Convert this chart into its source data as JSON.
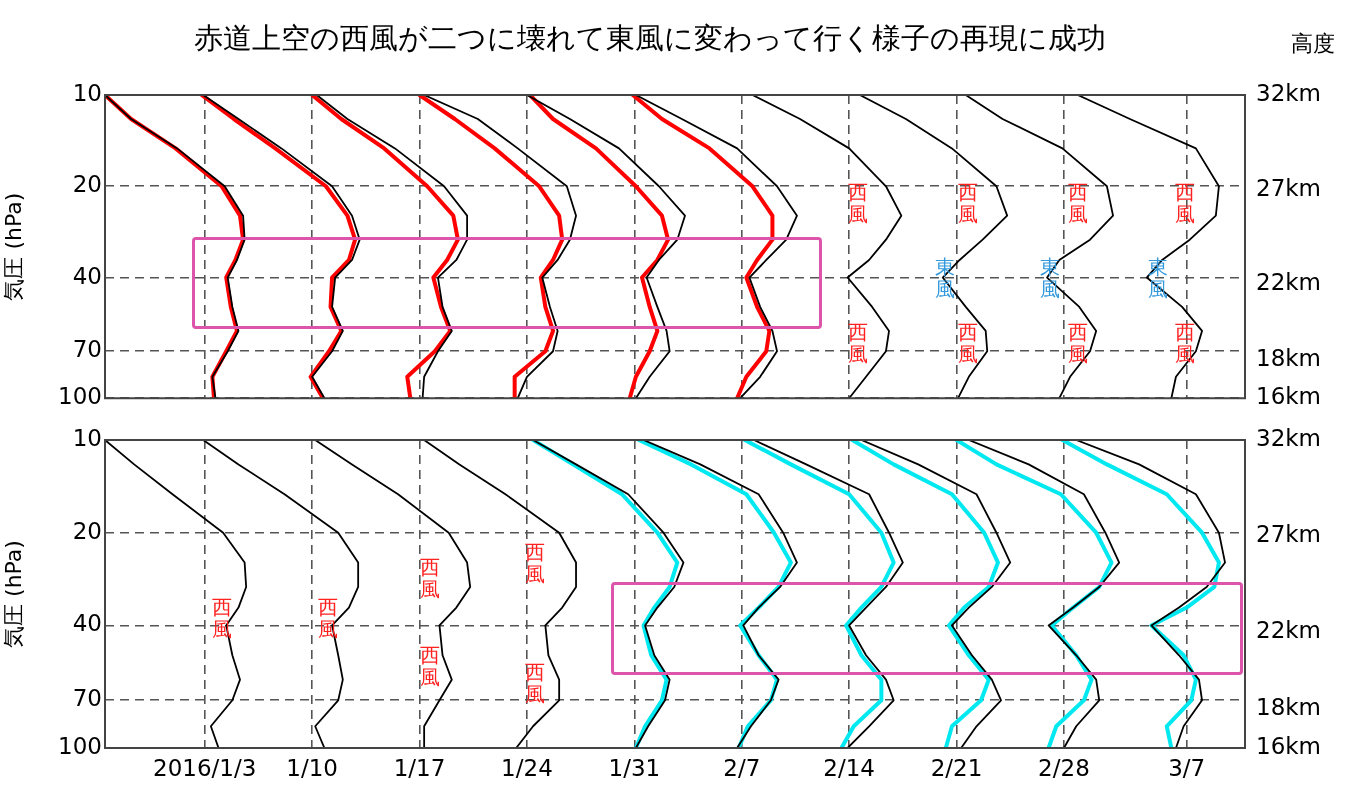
{
  "chart_data": [
    {
      "type": "line",
      "title": "赤道上空の西風が二つに壊れて東風に変わって行く様子の再現に成功",
      "ylabel": "気圧 (hPa)",
      "y2label": "高度",
      "xlim": [
        "2015-12-27T12:00",
        "2016-03-10T19:12"
      ],
      "xticks": [
        {
          "value": "2016-01-03",
          "label": null
        },
        {
          "value": "2016-01-10",
          "label": null
        },
        {
          "value": "2016-01-17",
          "label": null
        },
        {
          "value": "2016-01-24",
          "label": null
        },
        {
          "value": "2016-01-31",
          "label": null
        },
        {
          "value": "2016-02-07",
          "label": null
        },
        {
          "value": "2016-02-14",
          "label": null
        },
        {
          "value": "2016-02-21",
          "label": null
        },
        {
          "value": "2016-02-28",
          "label": null
        },
        {
          "value": "2016-03-07",
          "label": null
        }
      ],
      "ylim": [
        100,
        10
      ],
      "yticks": [
        10,
        20,
        40,
        70,
        100
      ],
      "y2lim": [
        16,
        32
      ],
      "y2ticks": [
        {
          "value": 16,
          "label": "16km"
        },
        {
          "value": 18,
          "label": "18km"
        },
        {
          "value": 22,
          "label": "22km"
        },
        {
          "value": 27,
          "label": "27km"
        },
        {
          "value": 32,
          "label": "32km"
        }
      ],
      "log": "y",
      "grid": true,
      "tick_labels": "y",
      "annotations": [
        "西風",
        "西風",
        "西風",
        "西風",
        "西風",
        "西風",
        "西風",
        "西風",
        "東風",
        "東風",
        "東風"
      ],
      "series": [
        {
          "color": "#ff0000",
          "x": [
            "2015-12-27T12:00",
            "2015-12-29T04:48",
            "2016-01-01T02:24",
            "2016-01-04T02:24",
            "2016-01-05T07:12",
            "2016-01-05T12:00",
            "2016-01-05T00:00",
            "2016-01-04T09:36",
            "2016-01-04T16:48",
            "2016-01-05T02:24",
            "2016-01-04T09:36",
            "2016-01-03T12:00",
            "2016-01-03T14:24"
          ],
          "values": [
            10,
            12,
            15,
            20,
            25,
            30,
            35,
            40,
            50,
            60,
            70,
            85,
            100
          ]
        },
        {
          "color": "#ff0000",
          "x": [
            "2016-01-02T19:12",
            "2016-01-04T21:36",
            "2016-01-07T14:24",
            "2016-01-10T21:36",
            "2016-01-12T07:12",
            "2016-01-12T19:12",
            "2016-01-12T09:36",
            "2016-01-11T07:12",
            "2016-01-11T04:48",
            "2016-01-11T21:36",
            "2016-01-11T02:24",
            "2016-01-09T21:36",
            "2016-01-10T16:48"
          ],
          "values": [
            10,
            12,
            15,
            20,
            25,
            30,
            35,
            40,
            50,
            60,
            70,
            85,
            100
          ]
        },
        {
          "color": "#ff0000",
          "x": [
            "2016-01-10T00:00",
            "2016-01-11T21:36",
            "2016-01-14T16:48",
            "2016-01-17T12:00",
            "2016-01-19T04:48",
            "2016-01-19T12:00",
            "2016-01-18T19:12",
            "2016-01-17T21:36",
            "2016-01-18T09:36",
            "2016-01-19T00:00",
            "2016-01-18T00:00",
            "2016-01-16T04:48",
            "2016-01-16T09:36"
          ],
          "values": [
            10,
            12,
            15,
            20,
            25,
            30,
            35,
            40,
            50,
            60,
            70,
            85,
            100
          ]
        },
        {
          "color": "#ff0000",
          "x": [
            "2016-01-17T00:00",
            "2016-01-19T07:12",
            "2016-01-21T21:36",
            "2016-01-24T19:12",
            "2016-01-26T02:24",
            "2016-01-26T07:12",
            "2016-01-25T16:48",
            "2016-01-24T21:36",
            "2016-01-25T04:48",
            "2016-01-25T16:48",
            "2016-01-25T04:48",
            "2016-01-23T04:48",
            "2016-01-23T04:48"
          ],
          "values": [
            10,
            12,
            15,
            20,
            25,
            30,
            35,
            40,
            50,
            60,
            70,
            85,
            100
          ]
        },
        {
          "color": "#ff0000",
          "x": [
            "2016-01-24T04:48",
            "2016-01-25T16:48",
            "2016-01-28T12:00",
            "2016-01-31T02:24",
            "2016-02-01T19:12",
            "2016-02-02T04:48",
            "2016-02-01T12:00",
            "2016-01-31T12:00",
            "2016-02-01T00:00",
            "2016-02-01T12:00",
            "2016-02-01T00:00",
            "2016-01-31T02:24",
            "2016-01-30T16:48"
          ],
          "values": [
            10,
            12,
            15,
            20,
            25,
            30,
            35,
            40,
            50,
            60,
            70,
            85,
            100
          ]
        },
        {
          "color": "#ff0000",
          "x": [
            "2016-01-30T21:36",
            "2016-02-01T19:12",
            "2016-02-04T21:36",
            "2016-02-07T16:48",
            "2016-02-09T00:00",
            "2016-02-09T00:00",
            "2016-02-08T00:00",
            "2016-02-07T07:12",
            "2016-02-08T00:00",
            "2016-02-08T19:12",
            "2016-02-08T14:24",
            "2016-02-07T07:12",
            "2016-02-06T16:48"
          ],
          "values": [
            10,
            12,
            15,
            20,
            25,
            30,
            35,
            40,
            50,
            60,
            70,
            85,
            100
          ]
        },
        {
          "color": "#000000",
          "x": [
            "2015-12-27T12:00",
            "2015-12-29T04:48",
            "2016-01-01T04:48",
            "2016-01-04T07:12",
            "2016-01-05T12:00",
            "2016-01-05T14:24",
            "2016-01-05T02:24",
            "2016-01-04T12:00",
            "2016-01-04T19:12",
            "2016-01-05T04:48",
            "2016-01-04T12:00",
            "2016-01-03T12:00",
            "2016-01-03T16:48"
          ],
          "values": [
            10,
            12,
            15,
            20,
            25,
            30,
            35,
            40,
            50,
            60,
            70,
            85,
            100
          ]
        },
        {
          "color": "#000000",
          "x": [
            "2016-01-02T21:36",
            "2016-01-05T04:48",
            "2016-01-08T00:00",
            "2016-01-11T07:12",
            "2016-01-12T14:24",
            "2016-01-13T02:24",
            "2016-01-12T14:24",
            "2016-01-11T12:00",
            "2016-01-11T07:12",
            "2016-01-12T00:00",
            "2016-01-11T07:12",
            "2016-01-10T00:00",
            "2016-01-10T19:12"
          ],
          "values": [
            10,
            12,
            15,
            20,
            25,
            30,
            35,
            40,
            50,
            60,
            70,
            85,
            100
          ]
        },
        {
          "color": "#000000",
          "x": [
            "2016-01-10T07:12",
            "2016-01-12T07:12",
            "2016-01-15T09:36",
            "2016-01-18T14:24",
            "2016-01-20T02:24",
            "2016-01-20T02:24",
            "2016-01-19T09:36",
            "2016-01-18T04:48",
            "2016-01-18T12:00",
            "2016-01-19T02:24",
            "2016-01-18T04:48",
            "2016-01-17T07:12",
            "2016-01-17T04:48"
          ],
          "values": [
            10,
            12,
            15,
            20,
            25,
            30,
            35,
            40,
            50,
            60,
            70,
            85,
            100
          ]
        },
        {
          "color": "#000000",
          "x": [
            "2016-01-17T07:12",
            "2016-01-20T19:12",
            "2016-01-23T09:36",
            "2016-01-26T14:24",
            "2016-01-27T04:48",
            "2016-01-26T19:12",
            "2016-01-26T00:00",
            "2016-01-25T00:00",
            "2016-01-25T12:00",
            "2016-01-26T00:00",
            "2016-01-25T16:48",
            "2016-01-24T00:00",
            "2016-01-23T09:36"
          ],
          "values": [
            10,
            12,
            15,
            20,
            25,
            30,
            35,
            40,
            50,
            60,
            70,
            85,
            100
          ]
        },
        {
          "color": "#000000",
          "x": [
            "2016-01-24T00:00",
            "2016-01-26T19:12",
            "2016-01-30T00:00",
            "2016-02-01T14:24",
            "2016-02-03T07:12",
            "2016-02-02T19:12",
            "2016-02-01T14:24",
            "2016-01-31T19:12",
            "2016-02-01T12:00",
            "2016-02-02T02:24",
            "2016-02-02T07:12",
            "2016-02-01T00:00",
            "2016-01-31T02:24"
          ],
          "values": [
            10,
            12,
            15,
            20,
            25,
            30,
            35,
            40,
            50,
            60,
            70,
            85,
            100
          ]
        },
        {
          "color": "#000000",
          "x": [
            "2016-01-31T02:24",
            "2016-02-03T02:24",
            "2016-02-06T16:48",
            "2016-02-09T07:12",
            "2016-02-10T14:24",
            "2016-02-09T21:36",
            "2016-02-08T14:24",
            "2016-02-07T12:00",
            "2016-02-08T04:48",
            "2016-02-09T00:00",
            "2016-02-09T07:12",
            "2016-02-08T04:48",
            "2016-02-06T21:36"
          ],
          "values": [
            10,
            12,
            15,
            20,
            25,
            30,
            35,
            40,
            50,
            60,
            70,
            85,
            100
          ]
        },
        {
          "color": "#000000",
          "x": [
            "2016-02-07T16:48",
            "2016-02-10T19:12",
            "2016-02-14T00:00",
            "2016-02-16T09:36",
            "2016-02-17T09:36",
            "2016-02-16T09:36",
            "2016-02-15T07:12",
            "2016-02-13T21:36",
            "2016-02-15T12:00",
            "2016-02-16T14:24",
            "2016-02-16T09:36",
            "2016-02-15T02:24",
            "2016-02-14T00:00"
          ],
          "values": [
            10,
            12,
            15,
            20,
            25,
            30,
            35,
            40,
            50,
            60,
            70,
            85,
            100
          ]
        },
        {
          "color": "#000000",
          "x": [
            "2016-02-14T16:48",
            "2016-02-17T16:48",
            "2016-02-20T16:48",
            "2016-02-23T14:24",
            "2016-02-24T07:12",
            "2016-02-22T16:48",
            "2016-02-21T04:48",
            "2016-02-20T02:24",
            "2016-02-21T14:24",
            "2016-02-22T21:36",
            "2016-02-23T00:00",
            "2016-02-21T19:12",
            "2016-02-21T02:24"
          ],
          "values": [
            10,
            12,
            15,
            20,
            25,
            30,
            35,
            40,
            50,
            60,
            70,
            85,
            100
          ]
        },
        {
          "color": "#000000",
          "x": [
            "2016-02-21T14:24",
            "2016-02-24T00:00",
            "2016-02-27T21:36",
            "2016-03-01T19:12",
            "2016-03-02T04:48",
            "2016-02-29T16:48",
            "2016-02-27T16:48",
            "2016-02-26T21:36",
            "2016-02-29T00:00",
            "2016-03-01T02:24",
            "2016-02-29T16:48",
            "2016-02-28T09:36",
            "2016-02-27T16:48"
          ],
          "values": [
            10,
            12,
            15,
            20,
            25,
            30,
            35,
            40,
            50,
            60,
            70,
            85,
            100
          ]
        },
        {
          "color": "#000000",
          "x": [
            "2016-02-28T21:36",
            "2016-03-03T07:12",
            "2016-03-07T14:24",
            "2016-03-09T02:24",
            "2016-03-08T21:36",
            "2016-03-07T04:48",
            "2016-03-05T09:36",
            "2016-03-04T09:36",
            "2016-03-06T16:48",
            "2016-03-08T00:00",
            "2016-03-07T14:24",
            "2016-03-06T07:12",
            "2016-03-06T00:00"
          ],
          "values": [
            10,
            12,
            15,
            20,
            25,
            30,
            35,
            40,
            50,
            60,
            70,
            85,
            100
          ]
        }
      ]
    },
    {
      "type": "line",
      "ylabel": "気圧 (hPa)",
      "xlim": [
        "2015-12-27T12:00",
        "2016-03-10T19:12"
      ],
      "xticks": [
        {
          "value": "2016-01-03",
          "label": "2016/1/3"
        },
        {
          "value": "2016-01-10",
          "label": "1/10"
        },
        {
          "value": "2016-01-17",
          "label": "1/17"
        },
        {
          "value": "2016-01-24",
          "label": "1/24"
        },
        {
          "value": "2016-01-31",
          "label": "1/31"
        },
        {
          "value": "2016-02-07",
          "label": "2/7"
        },
        {
          "value": "2016-02-14",
          "label": "2/14"
        },
        {
          "value": "2016-02-21",
          "label": "2/21"
        },
        {
          "value": "2016-02-28",
          "label": "2/28"
        },
        {
          "value": "2016-03-07",
          "label": "3/7"
        }
      ],
      "ylim": [
        100,
        10
      ],
      "yticks": [
        10,
        20,
        40,
        70,
        100
      ],
      "y2lim": [
        16,
        32
      ],
      "y2ticks": [
        {
          "value": 16,
          "label": "16km"
        },
        {
          "value": 18,
          "label": "18km"
        },
        {
          "value": 22,
          "label": "22km"
        },
        {
          "value": 27,
          "label": "27km"
        },
        {
          "value": 32,
          "label": "32km"
        }
      ],
      "log": "y",
      "grid": true,
      "annotations": [
        "西風",
        "西風",
        "西風",
        "西風",
        "西風",
        "西風"
      ],
      "series": [
        {
          "color": "#00e8f0",
          "x": [
            "2016-01-24T09:36",
            "2016-01-27T00:00",
            "2016-01-30T04:48",
            "2016-02-01T12:00",
            "2016-02-02T19:12",
            "2016-02-02T07:12",
            "2016-02-01T07:12",
            "2016-01-31T14:24",
            "2016-02-01T02:24",
            "2016-02-02T02:24",
            "2016-02-01T19:12",
            "2016-01-31T16:48",
            "2016-01-31T02:24"
          ],
          "values": [
            10,
            12,
            15,
            20,
            25,
            30,
            35,
            40,
            50,
            60,
            70,
            85,
            100
          ]
        },
        {
          "color": "#00e8f0",
          "x": [
            "2016-01-31T07:12",
            "2016-02-03T16:48",
            "2016-02-07T07:12",
            "2016-02-09T02:24",
            "2016-02-10T04:48",
            "2016-02-09T09:36",
            "2016-02-08T02:24",
            "2016-02-06T21:36",
            "2016-02-08T02:24",
            "2016-02-09T07:12",
            "2016-02-08T21:36",
            "2016-02-07T09:36",
            "2016-02-06T19:12"
          ],
          "values": [
            10,
            12,
            15,
            20,
            25,
            30,
            35,
            40,
            50,
            60,
            70,
            85,
            100
          ]
        },
        {
          "color": "#00e8f0",
          "x": [
            "2016-02-07T04:48",
            "2016-02-10T04:48",
            "2016-02-14T00:00",
            "2016-02-16T02:24",
            "2016-02-16T21:36",
            "2016-02-16T02:24",
            "2016-02-14T19:12",
            "2016-02-13T19:12",
            "2016-02-14T19:12",
            "2016-02-16T02:24",
            "2016-02-16T02:24",
            "2016-02-14T07:12",
            "2016-02-13T12:00"
          ],
          "values": [
            10,
            12,
            15,
            20,
            25,
            30,
            35,
            40,
            50,
            60,
            70,
            85,
            100
          ]
        },
        {
          "color": "#00e8f0",
          "x": [
            "2016-02-14T04:48",
            "2016-02-16T21:36",
            "2016-02-20T16:48",
            "2016-02-22T19:12",
            "2016-02-23T16:48",
            "2016-02-23T02:24",
            "2016-02-21T12:00",
            "2016-02-20T12:00",
            "2016-02-21T19:12",
            "2016-02-23T02:24",
            "2016-02-22T14:24",
            "2016-02-20T16:48",
            "2016-02-20T07:12"
          ],
          "values": [
            10,
            12,
            15,
            20,
            25,
            30,
            35,
            40,
            50,
            60,
            70,
            85,
            100
          ]
        },
        {
          "color": "#00e8f0",
          "x": [
            "2016-02-21T00:00",
            "2016-02-23T14:24",
            "2016-02-27T19:12",
            "2016-03-01T02:24",
            "2016-03-02T02:24",
            "2016-03-01T07:12",
            "2016-02-28T14:24",
            "2016-02-27T04:48",
            "2016-02-28T19:12",
            "2016-02-29T19:12",
            "2016-02-29T07:12",
            "2016-02-27T12:00",
            "2016-02-27T00:00"
          ],
          "values": [
            10,
            12,
            15,
            20,
            25,
            30,
            35,
            40,
            50,
            60,
            70,
            85,
            100
          ]
        },
        {
          "color": "#00e8f0",
          "x": [
            "2016-02-27T21:36",
            "2016-03-01T19:12",
            "2016-03-05T16:48",
            "2016-03-08T00:00",
            "2016-03-09T02:24",
            "2016-03-08T19:12",
            "2016-03-07T00:00",
            "2016-03-04T16:48",
            "2016-03-06T19:12",
            "2016-03-07T14:24",
            "2016-03-07T07:12",
            "2016-03-05T16:48",
            "2016-03-06T00:00"
          ],
          "values": [
            10,
            12,
            15,
            20,
            25,
            30,
            35,
            40,
            50,
            60,
            70,
            85,
            100
          ]
        },
        {
          "color": "#000000",
          "x": [
            "2015-12-27T12:00",
            "2015-12-29T09:36",
            "2015-12-31T21:36",
            "2016-01-04T04:48",
            "2016-01-05T14:24",
            "2016-01-05T16:48",
            "2016-01-05T04:48",
            "2016-01-04T09:36",
            "2016-01-04T19:12",
            "2016-01-05T07:12",
            "2016-01-04T19:12",
            "2016-01-03T09:36",
            "2016-01-03T21:36"
          ],
          "values": [
            10,
            12,
            15,
            20,
            25,
            30,
            35,
            40,
            50,
            60,
            70,
            85,
            100
          ]
        },
        {
          "color": "#000000",
          "x": [
            "2016-01-02T21:36",
            "2016-01-05T04:48",
            "2016-01-08T04:48",
            "2016-01-11T16:48",
            "2016-01-13T00:00",
            "2016-01-13T00:00",
            "2016-01-12T09:36",
            "2016-01-11T07:12",
            "2016-01-11T16:48",
            "2016-01-12T00:00",
            "2016-01-11T16:48",
            "2016-01-10T04:48",
            "2016-01-10T19:12"
          ],
          "values": [
            10,
            12,
            15,
            20,
            25,
            30,
            35,
            40,
            50,
            60,
            70,
            85,
            100
          ]
        },
        {
          "color": "#000000",
          "x": [
            "2016-01-10T04:48",
            "2016-01-12T14:24",
            "2016-01-15T14:24",
            "2016-01-18T21:36",
            "2016-01-20T02:24",
            "2016-01-20T07:12",
            "2016-01-19T09:36",
            "2016-01-18T07:12",
            "2016-01-18T12:00",
            "2016-01-19T02:24",
            "2016-01-18T07:12",
            "2016-01-17T07:12",
            "2016-01-17T07:12"
          ],
          "values": [
            10,
            12,
            15,
            20,
            25,
            30,
            35,
            40,
            50,
            60,
            70,
            85,
            100
          ]
        },
        {
          "color": "#000000",
          "x": [
            "2016-01-17T07:12",
            "2016-01-19T14:24",
            "2016-01-22T14:24",
            "2016-01-26T02:24",
            "2016-01-27T04:48",
            "2016-01-27T04:48",
            "2016-01-26T07:12",
            "2016-01-25T04:48",
            "2016-01-25T09:36",
            "2016-01-26T02:24",
            "2016-01-26T02:24",
            "2016-01-24T09:36",
            "2016-01-23T07:12"
          ],
          "values": [
            10,
            12,
            15,
            20,
            25,
            30,
            35,
            40,
            50,
            60,
            70,
            85,
            100
          ]
        },
        {
          "color": "#000000",
          "x": [
            "2016-01-24T09:36",
            "2016-01-27T04:48",
            "2016-01-30T14:24",
            "2016-02-01T21:36",
            "2016-02-03T04:48",
            "2016-02-02T14:24",
            "2016-02-01T12:00",
            "2016-01-31T16:48",
            "2016-02-01T07:12",
            "2016-02-02T07:12",
            "2016-02-02T00:00",
            "2016-01-31T21:36",
            "2016-01-31T02:24"
          ],
          "values": [
            10,
            12,
            15,
            20,
            25,
            30,
            35,
            40,
            50,
            60,
            70,
            85,
            100
          ]
        },
        {
          "color": "#000000",
          "x": [
            "2016-01-31T14:24",
            "2016-02-04T07:12",
            "2016-02-08T02:24",
            "2016-02-09T16:48",
            "2016-02-10T14:24",
            "2016-02-09T12:00",
            "2016-02-08T02:24",
            "2016-02-07T02:24",
            "2016-02-08T02:24",
            "2016-02-09T09:36",
            "2016-02-08T21:36",
            "2016-02-07T14:24",
            "2016-02-06T16:48"
          ],
          "values": [
            10,
            12,
            15,
            20,
            25,
            30,
            35,
            40,
            50,
            60,
            70,
            85,
            100
          ]
        },
        {
          "color": "#000000",
          "x": [
            "2016-02-07T19:12",
            "2016-02-11T04:48",
            "2016-02-15T07:12",
            "2016-02-16T14:24",
            "2016-02-17T12:00",
            "2016-02-16T09:36",
            "2016-02-15T02:24",
            "2016-02-14T00:00",
            "2016-02-15T02:24",
            "2016-02-16T09:36",
            "2016-02-16T21:36",
            "2016-02-15T07:12",
            "2016-02-13T21:36"
          ],
          "values": [
            10,
            12,
            15,
            20,
            25,
            30,
            35,
            40,
            50,
            60,
            70,
            85,
            100
          ]
        },
        {
          "color": "#000000",
          "x": [
            "2016-02-14T19:12",
            "2016-02-18T12:00",
            "2016-02-22T07:12",
            "2016-02-23T14:24",
            "2016-02-24T12:00",
            "2016-02-23T07:12",
            "2016-02-21T19:12",
            "2016-02-20T16:48",
            "2016-02-22T00:00",
            "2016-02-23T07:12",
            "2016-02-23T21:36",
            "2016-02-22T07:12",
            "2016-02-21T07:12"
          ],
          "values": [
            10,
            12,
            15,
            20,
            25,
            30,
            35,
            40,
            50,
            60,
            70,
            85,
            100
          ]
        },
        {
          "color": "#000000",
          "x": [
            "2016-02-21T19:12",
            "2016-02-25T16:48",
            "2016-02-29T07:12",
            "2016-03-01T16:48",
            "2016-03-02T14:24",
            "2016-03-01T07:12",
            "2016-02-28T14:24",
            "2016-02-27T00:00",
            "2016-02-28T19:12",
            "2016-03-01T02:24",
            "2016-03-01T07:12",
            "2016-02-28T19:12",
            "2016-02-28T00:00"
          ],
          "values": [
            10,
            12,
            15,
            20,
            25,
            30,
            35,
            40,
            50,
            60,
            70,
            85,
            100
          ]
        },
        {
          "color": "#000000",
          "x": [
            "2016-02-28T19:12",
            "2016-03-03T21:36",
            "2016-03-07T14:24",
            "2016-03-09T02:24",
            "2016-03-09T12:00",
            "2016-03-08T07:12",
            "2016-03-06T12:00",
            "2016-03-04T16:48",
            "2016-03-06T12:00",
            "2016-03-07T19:12",
            "2016-03-08T00:00",
            "2016-03-06T19:12",
            "2016-03-06T07:12"
          ],
          "values": [
            10,
            12,
            15,
            20,
            25,
            30,
            35,
            40,
            50,
            60,
            70,
            85,
            100
          ]
        }
      ]
    }
  ]
}
